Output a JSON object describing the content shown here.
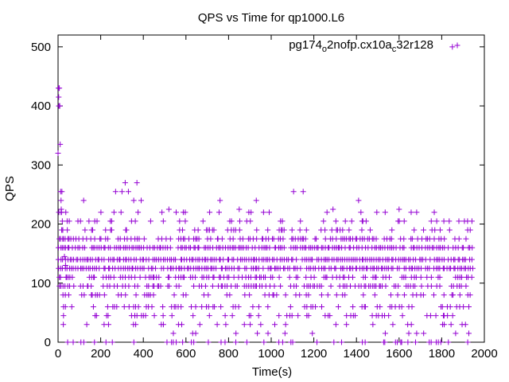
{
  "chart_data": {
    "type": "scatter",
    "title": "QPS vs Time for qp1000.L6",
    "xlabel": "Time(s)",
    "ylabel": "QPS",
    "xlim": [
      0,
      2000
    ],
    "ylim": [
      0,
      520
    ],
    "xticks": [
      "0",
      "200",
      "400",
      "600",
      "800",
      "1000",
      "1200",
      "1400",
      "1600",
      "1800",
      "2000"
    ],
    "yticks": [
      "0",
      "100",
      "200",
      "300",
      "400",
      "500"
    ],
    "grid": false,
    "legend_position": "top-right",
    "marker": "plus",
    "color": "#9400d3",
    "legend": {
      "parts": [
        "pg174",
        "o",
        "2nofp.cx10a",
        "c",
        "32r128"
      ]
    },
    "series": [
      {
        "name": "pg174_o2nofp.cx10a_c32r128",
        "points": [
          [
            0,
            320
          ],
          [
            2,
            430
          ],
          [
            3,
            415
          ],
          [
            4,
            400
          ],
          [
            6,
            430
          ],
          [
            8,
            400
          ],
          [
            10,
            335
          ],
          [
            12,
            255
          ],
          [
            14,
            240
          ],
          [
            15,
            225
          ],
          [
            16,
            220
          ],
          [
            18,
            255
          ],
          [
            20,
            205
          ],
          [
            22,
            190
          ],
          [
            25,
            175
          ],
          [
            28,
            160
          ],
          [
            30,
            145
          ],
          [
            35,
            130
          ],
          [
            40,
            110
          ],
          [
            45,
            0
          ],
          [
            120,
            240
          ],
          [
            145,
            205
          ],
          [
            270,
            255
          ],
          [
            300,
            255
          ],
          [
            315,
            270
          ],
          [
            330,
            255
          ],
          [
            355,
            240
          ],
          [
            370,
            270
          ],
          [
            390,
            240
          ],
          [
            520,
            225
          ],
          [
            760,
            240
          ],
          [
            850,
            225
          ],
          [
            930,
            240
          ],
          [
            1105,
            255
          ],
          [
            1150,
            255
          ],
          [
            1290,
            225
          ],
          [
            1410,
            240
          ],
          [
            1600,
            225
          ],
          [
            1850,
            500
          ]
        ],
        "band_levels": [
          0,
          15,
          30,
          45,
          60,
          80,
          95,
          110,
          125,
          140,
          160,
          175,
          190,
          205,
          220
        ],
        "band_density": [
          0.22,
          0.1,
          0.18,
          0.22,
          0.3,
          0.28,
          0.5,
          0.62,
          0.88,
          0.92,
          0.9,
          0.55,
          0.3,
          0.18,
          0.08
        ],
        "x_range": [
          0,
          1940
        ],
        "step_seconds": 10
      }
    ]
  }
}
